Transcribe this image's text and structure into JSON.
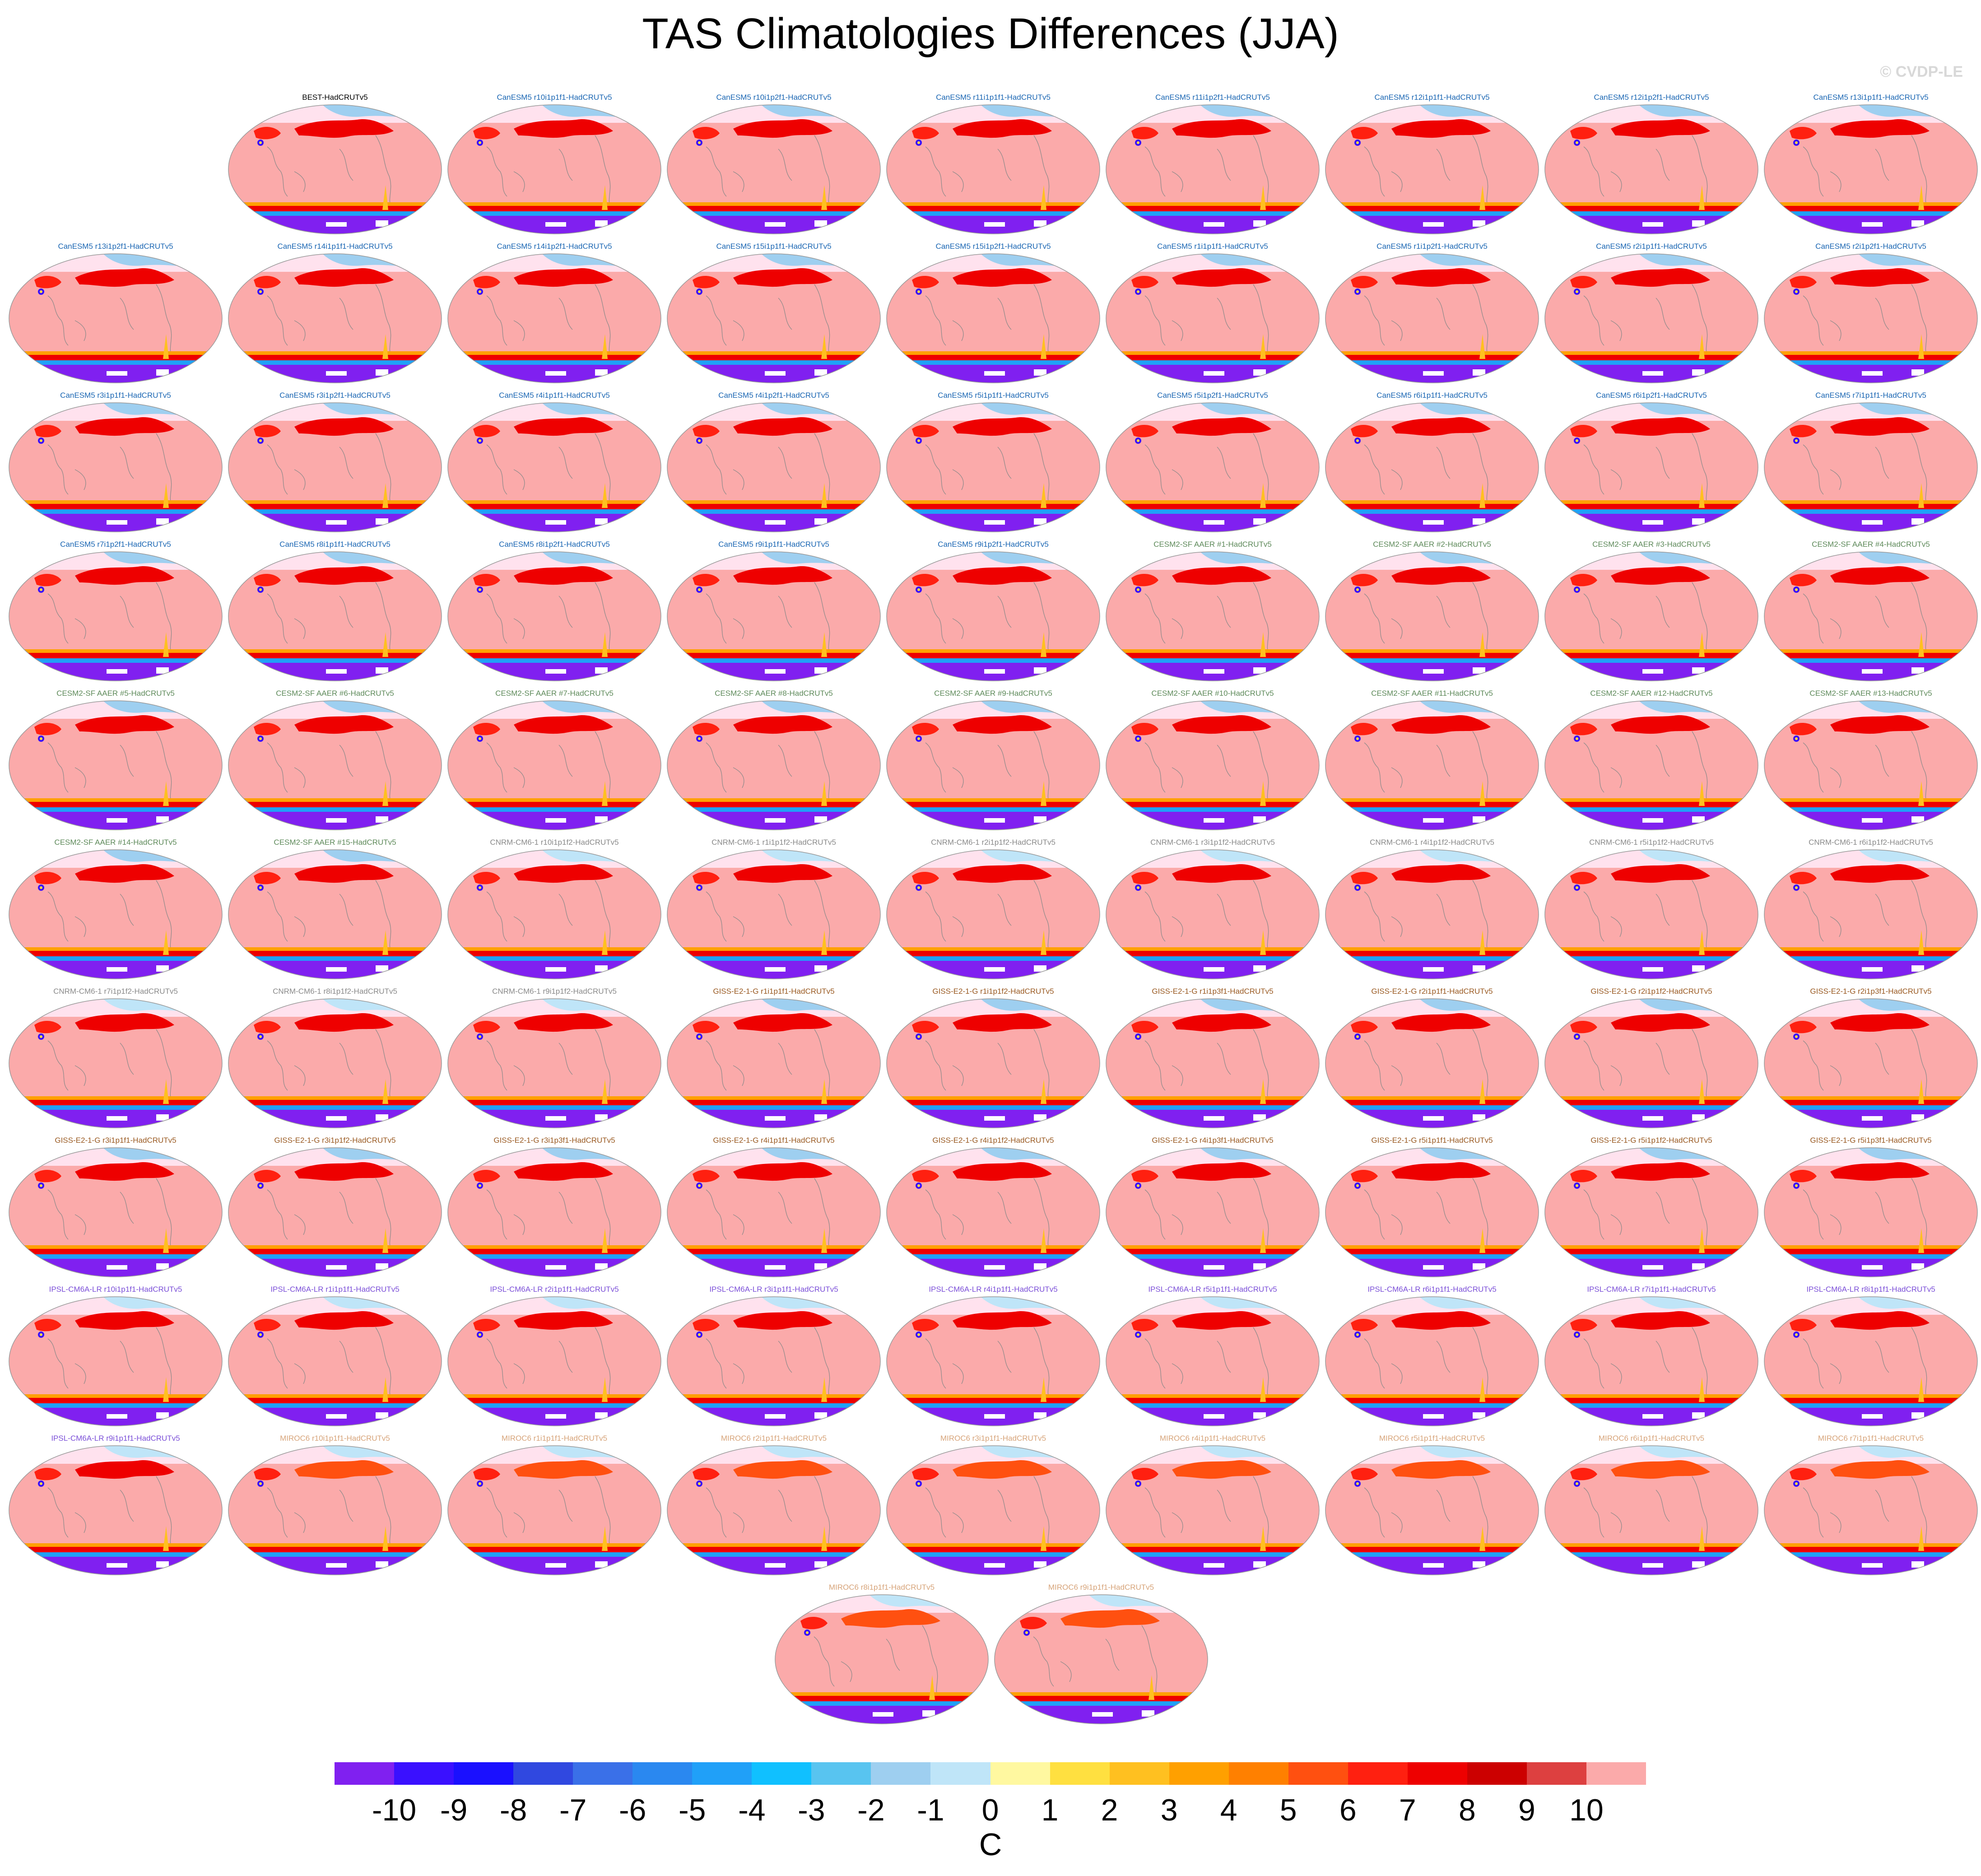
{
  "title": "TAS Climatologies Differences (JJA)",
  "copyright": "© CVDP-LE",
  "colors": {
    "ocean": "#fbaaaa",
    "polar_band": "#ffe2ee",
    "coast": "#888888",
    "canesm5_label": "#1a66b3",
    "cesm2_label": "#5e8a5a",
    "cnrm_label": "#8a8a8a",
    "giss_label": "#9a5a22",
    "ipsl_label": "#7b4fd8",
    "miroc_label": "#d7a47a",
    "obs_label": "#000000"
  },
  "panels": [
    {
      "label": "BEST-HadCRUTv5",
      "group": "obs"
    },
    {
      "label": "CanESM5 r10i1p1f1-HadCRUTv5",
      "group": "canesm5"
    },
    {
      "label": "CanESM5 r10i1p2f1-HadCRUTv5",
      "group": "canesm5"
    },
    {
      "label": "CanESM5 r11i1p1f1-HadCRUTv5",
      "group": "canesm5"
    },
    {
      "label": "CanESM5 r11i1p2f1-HadCRUTv5",
      "group": "canesm5"
    },
    {
      "label": "CanESM5 r12i1p1f1-HadCRUTv5",
      "group": "canesm5"
    },
    {
      "label": "CanESM5 r12i1p2f1-HadCRUTv5",
      "group": "canesm5"
    },
    {
      "label": "CanESM5 r13i1p1f1-HadCRUTv5",
      "group": "canesm5"
    },
    {
      "label": "CanESM5 r13i1p2f1-HadCRUTv5",
      "group": "canesm5"
    },
    {
      "label": "CanESM5 r14i1p1f1-HadCRUTv5",
      "group": "canesm5"
    },
    {
      "label": "CanESM5 r14i1p2f1-HadCRUTv5",
      "group": "canesm5"
    },
    {
      "label": "CanESM5 r15i1p1f1-HadCRUTv5",
      "group": "canesm5"
    },
    {
      "label": "CanESM5 r15i1p2f1-HadCRUTv5",
      "group": "canesm5"
    },
    {
      "label": "CanESM5 r1i1p1f1-HadCRUTv5",
      "group": "canesm5"
    },
    {
      "label": "CanESM5 r1i1p2f1-HadCRUTv5",
      "group": "canesm5"
    },
    {
      "label": "CanESM5 r2i1p1f1-HadCRUTv5",
      "group": "canesm5"
    },
    {
      "label": "CanESM5 r2i1p2f1-HadCRUTv5",
      "group": "canesm5"
    },
    {
      "label": "CanESM5 r3i1p1f1-HadCRUTv5",
      "group": "canesm5"
    },
    {
      "label": "CanESM5 r3i1p2f1-HadCRUTv5",
      "group": "canesm5"
    },
    {
      "label": "CanESM5 r4i1p1f1-HadCRUTv5",
      "group": "canesm5"
    },
    {
      "label": "CanESM5 r4i1p2f1-HadCRUTv5",
      "group": "canesm5"
    },
    {
      "label": "CanESM5 r5i1p1f1-HadCRUTv5",
      "group": "canesm5"
    },
    {
      "label": "CanESM5 r5i1p2f1-HadCRUTv5",
      "group": "canesm5"
    },
    {
      "label": "CanESM5 r6i1p1f1-HadCRUTv5",
      "group": "canesm5"
    },
    {
      "label": "CanESM5 r6i1p2f1-HadCRUTv5",
      "group": "canesm5"
    },
    {
      "label": "CanESM5 r7i1p1f1-HadCRUTv5",
      "group": "canesm5"
    },
    {
      "label": "CanESM5 r7i1p2f1-HadCRUTv5",
      "group": "canesm5"
    },
    {
      "label": "CanESM5 r8i1p1f1-HadCRUTv5",
      "group": "canesm5"
    },
    {
      "label": "CanESM5 r8i1p2f1-HadCRUTv5",
      "group": "canesm5"
    },
    {
      "label": "CanESM5 r9i1p1f1-HadCRUTv5",
      "group": "canesm5"
    },
    {
      "label": "CanESM5 r9i1p2f1-HadCRUTv5",
      "group": "canesm5"
    },
    {
      "label": "CESM2-SF AAER #1-HadCRUTv5",
      "group": "cesm2"
    },
    {
      "label": "CESM2-SF AAER #2-HadCRUTv5",
      "group": "cesm2"
    },
    {
      "label": "CESM2-SF AAER #3-HadCRUTv5",
      "group": "cesm2"
    },
    {
      "label": "CESM2-SF AAER #4-HadCRUTv5",
      "group": "cesm2"
    },
    {
      "label": "CESM2-SF AAER #5-HadCRUTv5",
      "group": "cesm2"
    },
    {
      "label": "CESM2-SF AAER #6-HadCRUTv5",
      "group": "cesm2"
    },
    {
      "label": "CESM2-SF AAER #7-HadCRUTv5",
      "group": "cesm2"
    },
    {
      "label": "CESM2-SF AAER #8-HadCRUTv5",
      "group": "cesm2"
    },
    {
      "label": "CESM2-SF AAER #9-HadCRUTv5",
      "group": "cesm2"
    },
    {
      "label": "CESM2-SF AAER #10-HadCRUTv5",
      "group": "cesm2"
    },
    {
      "label": "CESM2-SF AAER #11-HadCRUTv5",
      "group": "cesm2"
    },
    {
      "label": "CESM2-SF AAER #12-HadCRUTv5",
      "group": "cesm2"
    },
    {
      "label": "CESM2-SF AAER #13-HadCRUTv5",
      "group": "cesm2"
    },
    {
      "label": "CESM2-SF AAER #14-HadCRUTv5",
      "group": "cesm2"
    },
    {
      "label": "CESM2-SF AAER #15-HadCRUTv5",
      "group": "cesm2"
    },
    {
      "label": "CNRM-CM6-1 r10i1p1f2-HadCRUTv5",
      "group": "cnrm"
    },
    {
      "label": "CNRM-CM6-1 r1i1p1f2-HadCRUTv5",
      "group": "cnrm"
    },
    {
      "label": "CNRM-CM6-1 r2i1p1f2-HadCRUTv5",
      "group": "cnrm"
    },
    {
      "label": "CNRM-CM6-1 r3i1p1f2-HadCRUTv5",
      "group": "cnrm"
    },
    {
      "label": "CNRM-CM6-1 r4i1p1f2-HadCRUTv5",
      "group": "cnrm"
    },
    {
      "label": "CNRM-CM6-1 r5i1p1f2-HadCRUTv5",
      "group": "cnrm"
    },
    {
      "label": "CNRM-CM6-1 r6i1p1f2-HadCRUTv5",
      "group": "cnrm"
    },
    {
      "label": "CNRM-CM6-1 r7i1p1f2-HadCRUTv5",
      "group": "cnrm"
    },
    {
      "label": "CNRM-CM6-1 r8i1p1f2-HadCRUTv5",
      "group": "cnrm"
    },
    {
      "label": "CNRM-CM6-1 r9i1p1f2-HadCRUTv5",
      "group": "cnrm"
    },
    {
      "label": "GISS-E2-1-G r1i1p1f1-HadCRUTv5",
      "group": "giss"
    },
    {
      "label": "GISS-E2-1-G r1i1p1f2-HadCRUTv5",
      "group": "giss"
    },
    {
      "label": "GISS-E2-1-G r1i1p3f1-HadCRUTv5",
      "group": "giss"
    },
    {
      "label": "GISS-E2-1-G r2i1p1f1-HadCRUTv5",
      "group": "giss"
    },
    {
      "label": "GISS-E2-1-G r2i1p1f2-HadCRUTv5",
      "group": "giss"
    },
    {
      "label": "GISS-E2-1-G r2i1p3f1-HadCRUTv5",
      "group": "giss"
    },
    {
      "label": "GISS-E2-1-G r3i1p1f1-HadCRUTv5",
      "group": "giss"
    },
    {
      "label": "GISS-E2-1-G r3i1p1f2-HadCRUTv5",
      "group": "giss"
    },
    {
      "label": "GISS-E2-1-G r3i1p3f1-HadCRUTv5",
      "group": "giss"
    },
    {
      "label": "GISS-E2-1-G r4i1p1f1-HadCRUTv5",
      "group": "giss"
    },
    {
      "label": "GISS-E2-1-G r4i1p1f2-HadCRUTv5",
      "group": "giss"
    },
    {
      "label": "GISS-E2-1-G r4i1p3f1-HadCRUTv5",
      "group": "giss"
    },
    {
      "label": "GISS-E2-1-G r5i1p1f1-HadCRUTv5",
      "group": "giss"
    },
    {
      "label": "GISS-E2-1-G r5i1p1f2-HadCRUTv5",
      "group": "giss"
    },
    {
      "label": "GISS-E2-1-G r5i1p3f1-HadCRUTv5",
      "group": "giss"
    },
    {
      "label": "IPSL-CM6A-LR r10i1p1f1-HadCRUTv5",
      "group": "ipsl"
    },
    {
      "label": "IPSL-CM6A-LR r1i1p1f1-HadCRUTv5",
      "group": "ipsl"
    },
    {
      "label": "IPSL-CM6A-LR r2i1p1f1-HadCRUTv5",
      "group": "ipsl"
    },
    {
      "label": "IPSL-CM6A-LR r3i1p1f1-HadCRUTv5",
      "group": "ipsl"
    },
    {
      "label": "IPSL-CM6A-LR r4i1p1f1-HadCRUTv5",
      "group": "ipsl"
    },
    {
      "label": "IPSL-CM6A-LR r5i1p1f1-HadCRUTv5",
      "group": "ipsl"
    },
    {
      "label": "IPSL-CM6A-LR r6i1p1f1-HadCRUTv5",
      "group": "ipsl"
    },
    {
      "label": "IPSL-CM6A-LR r7i1p1f1-HadCRUTv5",
      "group": "ipsl"
    },
    {
      "label": "IPSL-CM6A-LR r8i1p1f1-HadCRUTv5",
      "group": "ipsl"
    },
    {
      "label": "IPSL-CM6A-LR r9i1p1f1-HadCRUTv5",
      "group": "ipsl"
    },
    {
      "label": "MIROC6 r10i1p1f1-HadCRUTv5",
      "group": "miroc"
    },
    {
      "label": "MIROC6 r1i1p1f1-HadCRUTv5",
      "group": "miroc"
    },
    {
      "label": "MIROC6 r2i1p1f1-HadCRUTv5",
      "group": "miroc"
    },
    {
      "label": "MIROC6 r3i1p1f1-HadCRUTv5",
      "group": "miroc"
    },
    {
      "label": "MIROC6 r4i1p1f1-HadCRUTv5",
      "group": "miroc"
    },
    {
      "label": "MIROC6 r5i1p1f1-HadCRUTv5",
      "group": "miroc"
    },
    {
      "label": "MIROC6 r6i1p1f1-HadCRUTv5",
      "group": "miroc"
    },
    {
      "label": "MIROC6 r7i1p1f1-HadCRUTv5",
      "group": "miroc"
    },
    {
      "label": "MIROC6 r8i1p1f1-HadCRUTv5",
      "group": "miroc"
    },
    {
      "label": "MIROC6 r9i1p1f1-HadCRUTv5",
      "group": "miroc"
    }
  ],
  "colorbar": {
    "unit": "C",
    "ticks": [
      "-10",
      "-9",
      "-8",
      "-7",
      "-6",
      "-5",
      "-4",
      "-3",
      "-2",
      "-1",
      "0",
      "1",
      "2",
      "3",
      "4",
      "5",
      "6",
      "7",
      "8",
      "9",
      "10"
    ],
    "colors": [
      "#8020f0",
      "#3a10ff",
      "#1a10ff",
      "#3048e0",
      "#3a70e8",
      "#2a88f0",
      "#20a0f8",
      "#10c0ff",
      "#58c4f0",
      "#9ecff0",
      "#bfe5f8",
      "#fff8a0",
      "#ffe040",
      "#ffc020",
      "#ffa000",
      "#ff8000",
      "#ff5010",
      "#ff2010",
      "#ee0000",
      "#cc0000",
      "#dd4040",
      "#fbaaaa"
    ]
  }
}
